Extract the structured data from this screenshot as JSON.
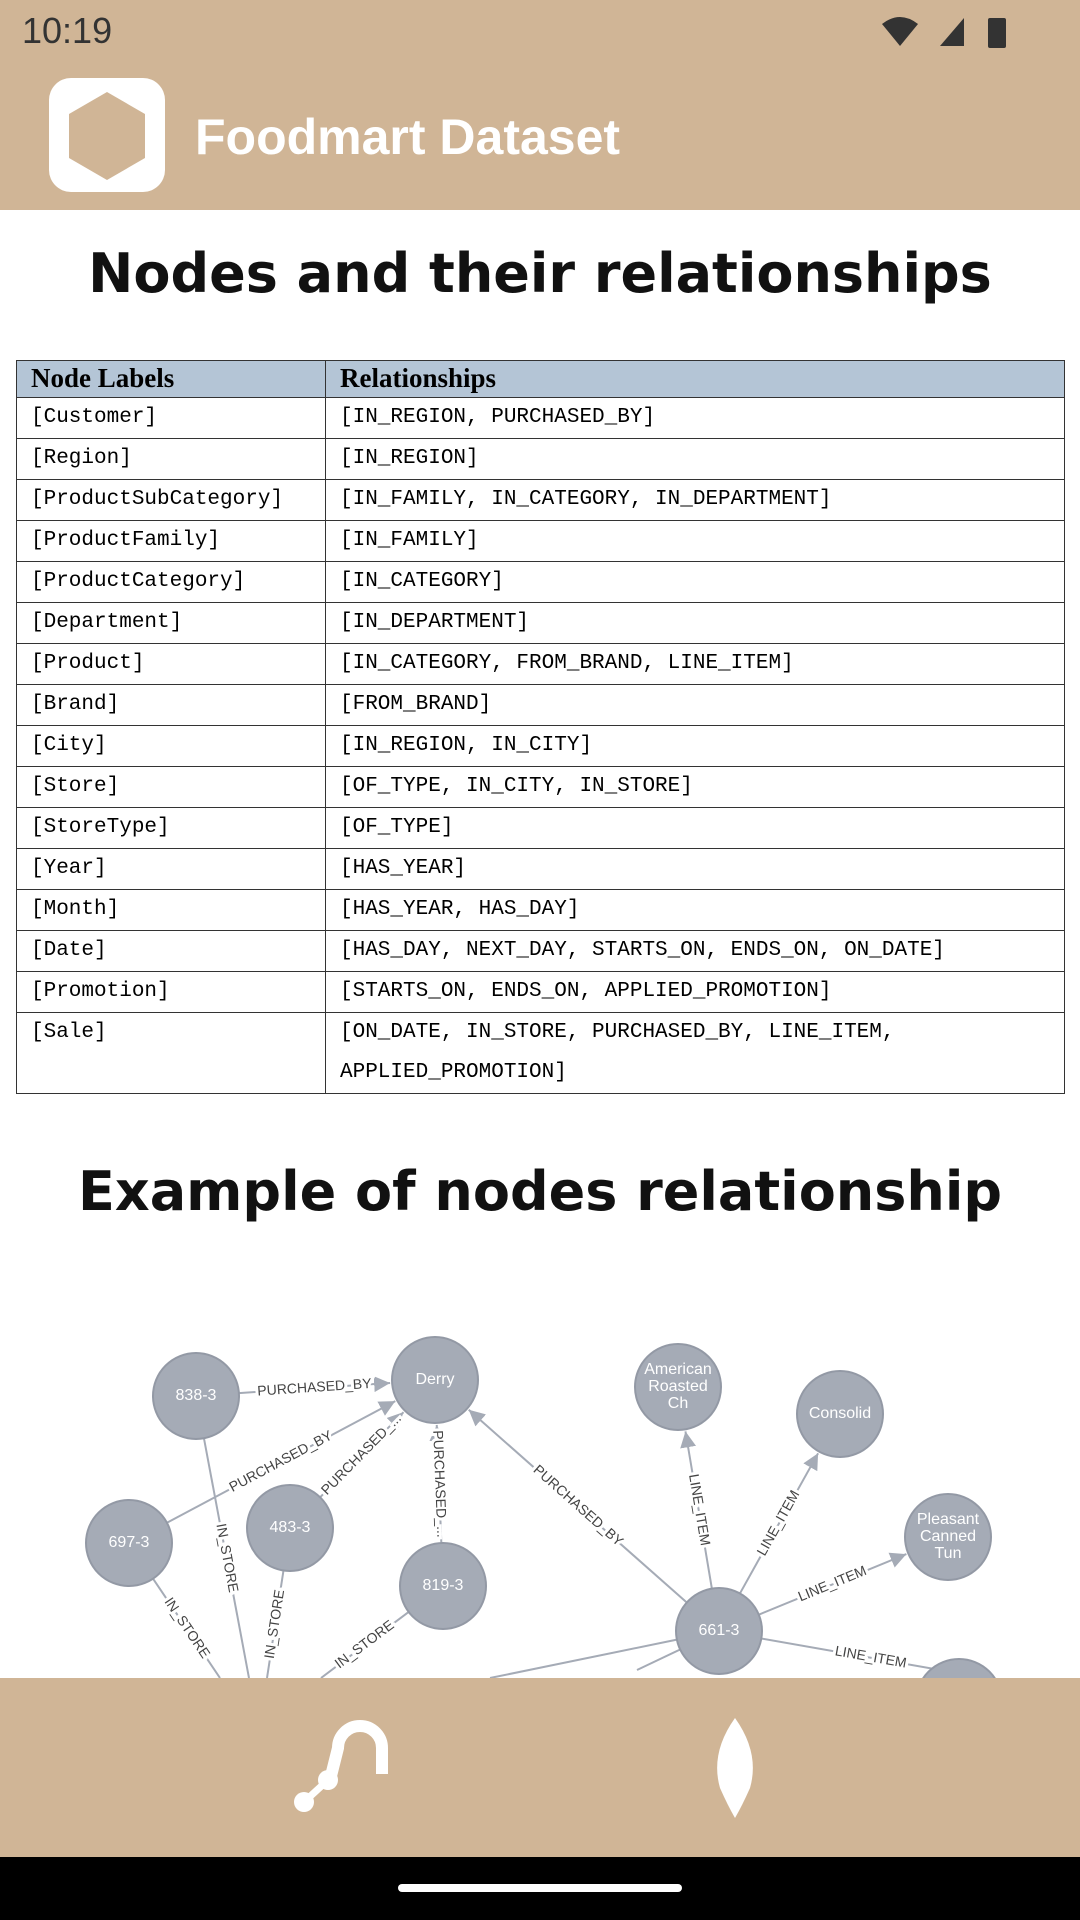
{
  "status": {
    "time": "10:19"
  },
  "app": {
    "title": "Foodmart Dataset"
  },
  "heading1": "Nodes and their relationships",
  "table": {
    "header": [
      "Node Labels",
      "Relationships"
    ],
    "rows": [
      [
        "[Customer]",
        "[IN_REGION, PURCHASED_BY]"
      ],
      [
        "[Region]",
        "[IN_REGION]"
      ],
      [
        "[ProductSubCategory]",
        "[IN_FAMILY, IN_CATEGORY, IN_DEPARTMENT]"
      ],
      [
        "[ProductFamily]",
        "[IN_FAMILY]"
      ],
      [
        "[ProductCategory]",
        "[IN_CATEGORY]"
      ],
      [
        "[Department]",
        "[IN_DEPARTMENT]"
      ],
      [
        "[Product]",
        "[IN_CATEGORY, FROM_BRAND, LINE_ITEM]"
      ],
      [
        "[Brand]",
        "[FROM_BRAND]"
      ],
      [
        "[City]",
        "[IN_REGION, IN_CITY]"
      ],
      [
        "[Store]",
        "[OF_TYPE, IN_CITY, IN_STORE]"
      ],
      [
        "[StoreType]",
        "[OF_TYPE]"
      ],
      [
        "[Year]",
        "[HAS_YEAR]"
      ],
      [
        "[Month]",
        "[HAS_YEAR, HAS_DAY]"
      ],
      [
        "[Date]",
        "[HAS_DAY, NEXT_DAY, STARTS_ON, ENDS_ON, ON_DATE]"
      ],
      [
        "[Promotion]",
        "[STARTS_ON, ENDS_ON, APPLIED_PROMOTION]"
      ],
      [
        "[Sale]",
        "[ON_DATE, IN_STORE, PURCHASED_BY, LINE_ITEM, APPLIED_PROMOTION]"
      ]
    ]
  },
  "heading2": "Example of nodes relationship",
  "graph": {
    "nodes": [
      {
        "lines": [
          "838-3"
        ]
      },
      {
        "lines": [
          "Derry"
        ]
      },
      {
        "lines": [
          "American",
          "Roasted",
          "Ch"
        ]
      },
      {
        "lines": [
          "Consolid"
        ]
      },
      {
        "lines": [
          "Pleasant",
          "Canned",
          "Tun"
        ]
      },
      {
        "lines": [
          "697-3"
        ]
      },
      {
        "lines": [
          "483-3"
        ]
      },
      {
        "lines": [
          "819-3"
        ]
      },
      {
        "lines": [
          "661-3"
        ]
      }
    ],
    "edges": [
      {
        "label": "PURCHASED_BY"
      },
      {
        "label": "PURCHASED_BY"
      },
      {
        "label": "PURCHASED_..."
      },
      {
        "label": "PURCHASED_..."
      },
      {
        "label": "PURCHASED_BY"
      },
      {
        "label": "LINE_ITEM"
      },
      {
        "label": "LINE_ITEM"
      },
      {
        "label": "LINE_ITEM"
      },
      {
        "label": "LINE_ITEM"
      },
      {
        "label": "IN_STORE"
      },
      {
        "label": "IN_STORE"
      },
      {
        "label": "IN_STORE"
      },
      {
        "label": "IN_STORE"
      }
    ]
  }
}
